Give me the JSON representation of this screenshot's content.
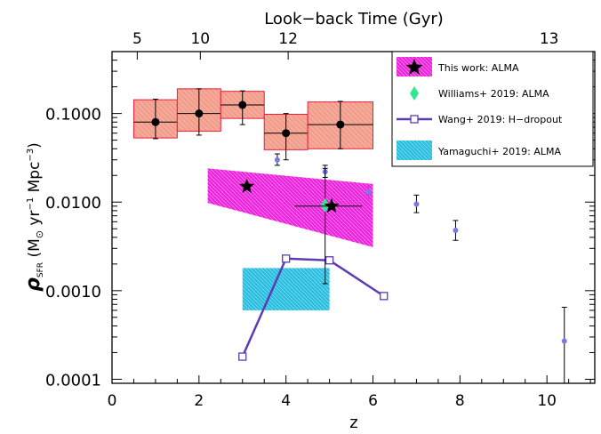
{
  "chart_data": {
    "type": "scatter",
    "top_axis_title": "Look−back Time (Gyr)",
    "x_axis_title": "z",
    "y_axis_symbol": "ρ",
    "y_axis_symbol_sub": "SFR",
    "y_axis_units_pre": " (M",
    "y_axis_sun": "⊙",
    "y_axis_units_mid": " yr",
    "y_axis_exp1": "−1",
    "y_axis_units_mid2": " Mpc",
    "y_axis_exp2": "−3",
    "y_axis_units_post": ")",
    "xlim": [
      0,
      11.1
    ],
    "ylim": [
      9e-05,
      0.5
    ],
    "y_scale": "log",
    "x_ticks": [
      "0",
      "2",
      "4",
      "6",
      "8",
      "10"
    ],
    "y_ticks": [
      "0.0001",
      "0.0010",
      "0.0100",
      "0.1000"
    ],
    "top_ticks": [
      {
        "label": "5",
        "z": 0.58
      },
      {
        "label": "10",
        "z": 2.03
      },
      {
        "label": "12",
        "z": 4.05
      },
      {
        "label": "13",
        "z": 10.05
      }
    ],
    "legend": {
      "placement": "top-right",
      "entries": [
        "This work: ALMA",
        "Williams+ 2019: ALMA",
        "Wang+ 2019: H−dropout",
        "Yamaguchi+ 2019: ALMA"
      ]
    },
    "red_boxes": [
      {
        "z0": 0.5,
        "z1": 1.5,
        "y": 0.08,
        "y_lo": 0.053,
        "y_hi": 0.143,
        "err_lo": 0.052,
        "err_hi": 0.145
      },
      {
        "z0": 1.5,
        "z1": 2.5,
        "y": 0.1,
        "y_lo": 0.063,
        "y_hi": 0.19,
        "err_lo": 0.057,
        "err_hi": 0.19
      },
      {
        "z0": 2.5,
        "z1": 3.5,
        "y": 0.125,
        "y_lo": 0.088,
        "y_hi": 0.178,
        "err_lo": 0.075,
        "err_hi": 0.18
      },
      {
        "z0": 3.5,
        "z1": 4.5,
        "y": 0.06,
        "y_lo": 0.039,
        "y_hi": 0.098,
        "err_lo": 0.03,
        "err_hi": 0.1
      },
      {
        "z0": 4.5,
        "z1": 6.0,
        "y": 0.075,
        "y_lo": 0.04,
        "y_hi": 0.135,
        "err_lo": 0.04,
        "err_hi": 0.137
      }
    ],
    "magenta_band": {
      "z0": 2.2,
      "z1": 6.0,
      "top0": 0.024,
      "top1": 0.016,
      "bot0": 0.0098,
      "bot1": 0.0031
    },
    "this_work": [
      {
        "z": 3.1,
        "y": 0.015
      },
      {
        "z": 5.05,
        "y": 0.009,
        "x_lo": 4.2,
        "x_hi": 5.75
      }
    ],
    "williams": {
      "z": 4.9,
      "y": 0.0092,
      "err_lo": 0.0012,
      "err_hi": 0.024
    },
    "wang": [
      {
        "z": 3.0,
        "y": 0.00018
      },
      {
        "z": 4.0,
        "y": 0.0023
      },
      {
        "z": 5.0,
        "y": 0.0022
      },
      {
        "z": 6.25,
        "y": 0.00087
      }
    ],
    "yamaguchi": {
      "z0": 3.0,
      "z1": 5.0,
      "y_lo": 0.0006,
      "y_hi": 0.0018
    },
    "blue_points": [
      {
        "z": 3.8,
        "y": 0.03,
        "err_lo": 0.026,
        "err_hi": 0.035
      },
      {
        "z": 4.9,
        "y": 0.022,
        "err_lo": 0.019,
        "err_hi": 0.026
      },
      {
        "z": 5.9,
        "y": 0.013,
        "err_lo": 0.011,
        "err_hi": 0.015
      },
      {
        "z": 7.0,
        "y": 0.0095,
        "err_lo": 0.0076,
        "err_hi": 0.012
      },
      {
        "z": 7.9,
        "y": 0.0048,
        "err_lo": 0.0037,
        "err_hi": 0.0062
      },
      {
        "z": 10.4,
        "y": 0.00027,
        "err_lo": 9e-05,
        "err_hi": 0.00065
      }
    ],
    "colors": {
      "red_fill": "#f4aa98",
      "red_line": "#e8203c",
      "magenta": "#ee22dd",
      "cyan": "#25bde0",
      "green": "#30e890",
      "purple": "#5a3cb4",
      "blue_point": "#7a7ae6"
    }
  }
}
